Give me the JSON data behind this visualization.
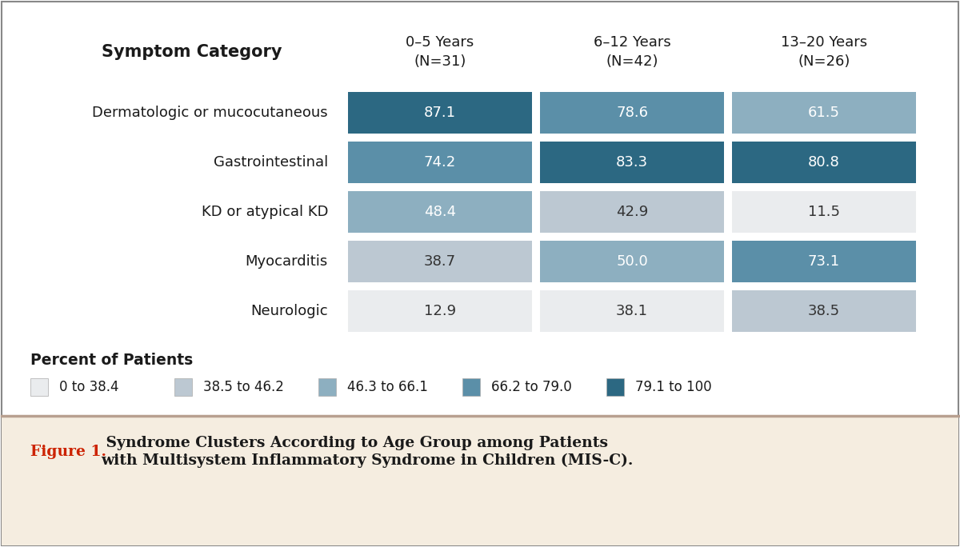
{
  "rows": [
    "Dermatologic or mucocutaneous",
    "Gastrointestinal",
    "KD or atypical KD",
    "Myocarditis",
    "Neurologic"
  ],
  "columns": [
    "0–5 Years\n(N=31)",
    "6–12 Years\n(N=42)",
    "13–20 Years\n(N=26)"
  ],
  "values": [
    [
      87.1,
      78.6,
      61.5
    ],
    [
      74.2,
      83.3,
      80.8
    ],
    [
      48.4,
      42.9,
      11.5
    ],
    [
      38.7,
      50.0,
      73.1
    ],
    [
      12.9,
      38.1,
      38.5
    ]
  ],
  "color_bins": [
    [
      0,
      38.4,
      "#eaecee"
    ],
    [
      38.5,
      46.2,
      "#bcc8d2"
    ],
    [
      46.3,
      66.1,
      "#8dafc0"
    ],
    [
      66.2,
      79.0,
      "#5b8fa8"
    ],
    [
      79.1,
      100,
      "#2c6882"
    ]
  ],
  "legend_labels": [
    "0 to 38.4",
    "38.5 to 46.2",
    "46.3 to 66.1",
    "66.2 to 79.0",
    "79.1 to 100"
  ],
  "legend_colors": [
    "#eaecee",
    "#bcc8d2",
    "#8dafc0",
    "#5b8fa8",
    "#2c6882"
  ],
  "header_label": "Symptom Category",
  "percent_label": "Percent of Patients",
  "figure1_label": "Figure 1.",
  "figure1_text": " Syndrome Clusters According to Age Group among Patients\nwith Multisystem Inflammatory Syndrome in Children (MIS-C).",
  "bg_color": "#ffffff",
  "caption_bg_color": "#f5ede0",
  "border_color": "#b8a090",
  "figsize": [
    12.0,
    6.84
  ],
  "dpi": 100,
  "outer_border_color": "#888888"
}
